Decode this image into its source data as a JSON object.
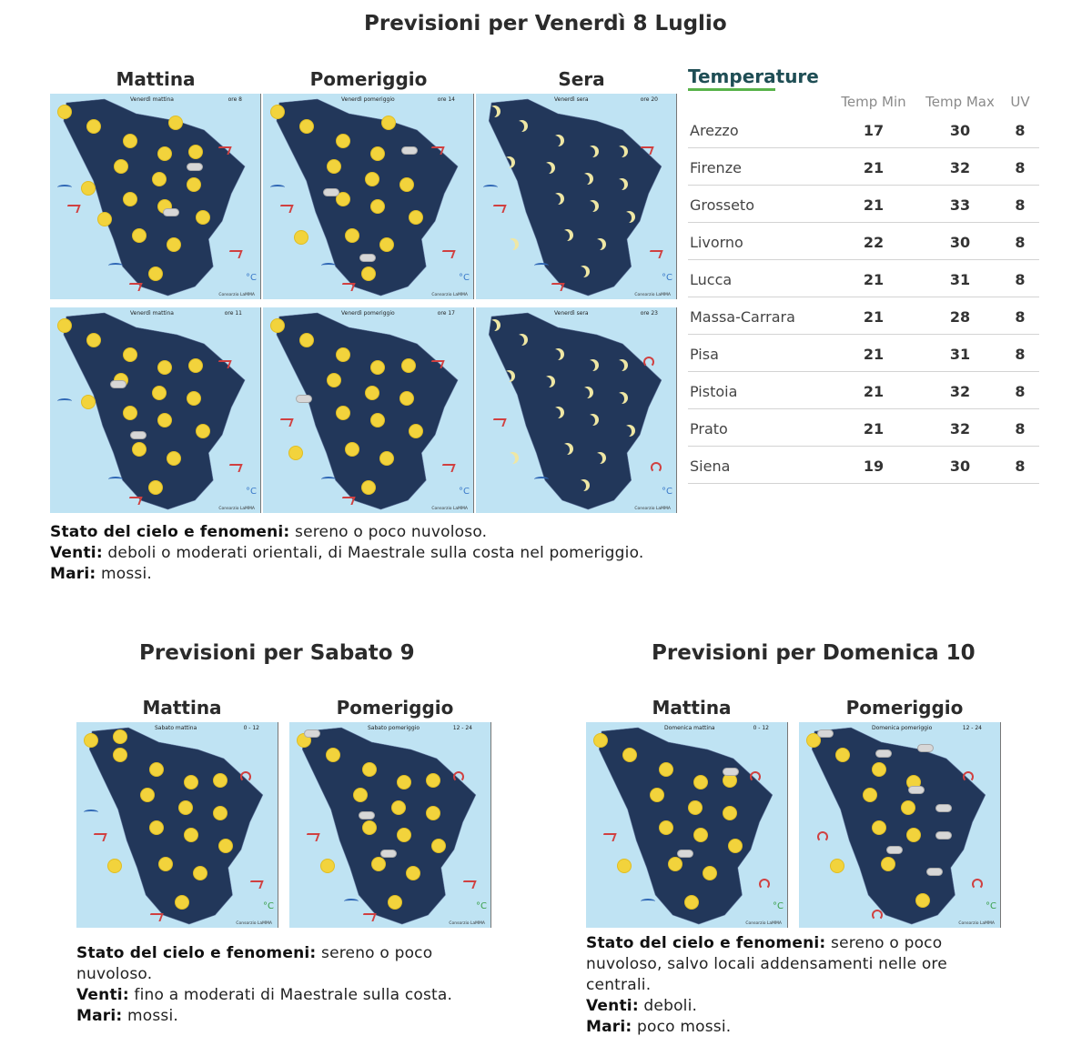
{
  "friday": {
    "title": "Previsioni per Venerdì 8 Luglio",
    "columns": [
      "Mattina",
      "Pomeriggio",
      "Sera"
    ],
    "maps": [
      {
        "caption": "Venerdì mattina",
        "time": "ore 8"
      },
      {
        "caption": "Venerdì pomeriggio",
        "time": "ore 14"
      },
      {
        "caption": "Venerdì sera",
        "time": "ore 20"
      },
      {
        "caption": "Venerdì mattina",
        "time": "ore 11"
      },
      {
        "caption": "Venerdì pomeriggio",
        "time": "ore 17"
      },
      {
        "caption": "Venerdì sera",
        "time": "ore 23"
      }
    ],
    "sky_label": "Stato del cielo e fenomeni:",
    "sky_text": "sereno o poco nuvoloso.",
    "wind_label": "Venti:",
    "wind_text": "deboli o moderati orientali, di Maestrale sulla costa nel pomeriggio.",
    "sea_label": "Mari:",
    "sea_text": "mossi."
  },
  "temperatures": {
    "title": "Temperature",
    "headers": [
      "Temp Min",
      "Temp Max",
      "UV"
    ],
    "rows": [
      {
        "city": "Arezzo",
        "min": "17",
        "max": "30",
        "uv": "8"
      },
      {
        "city": "Firenze",
        "min": "21",
        "max": "32",
        "uv": "8"
      },
      {
        "city": "Grosseto",
        "min": "21",
        "max": "33",
        "uv": "8"
      },
      {
        "city": "Livorno",
        "min": "22",
        "max": "30",
        "uv": "8"
      },
      {
        "city": "Lucca",
        "min": "21",
        "max": "31",
        "uv": "8"
      },
      {
        "city": "Massa-Carrara",
        "min": "21",
        "max": "28",
        "uv": "8"
      },
      {
        "city": "Pisa",
        "min": "21",
        "max": "31",
        "uv": "8"
      },
      {
        "city": "Pistoia",
        "min": "21",
        "max": "32",
        "uv": "8"
      },
      {
        "city": "Prato",
        "min": "21",
        "max": "32",
        "uv": "8"
      },
      {
        "city": "Siena",
        "min": "19",
        "max": "30",
        "uv": "8"
      }
    ]
  },
  "saturday": {
    "title": "Previsioni per Sabato 9",
    "columns": [
      "Mattina",
      "Pomeriggio"
    ],
    "maps": [
      {
        "caption": "Sabato mattina",
        "time": "0 - 12"
      },
      {
        "caption": "Sabato pomeriggio",
        "time": "12 - 24"
      }
    ],
    "sky_label": "Stato del cielo e fenomeni:",
    "sky_text_1": "sereno o poco",
    "sky_text_2": "nuvoloso.",
    "wind_label": "Venti:",
    "wind_text": "fino a moderati di Maestrale sulla costa.",
    "sea_label": "Mari:",
    "sea_text": "mossi."
  },
  "sunday": {
    "title": "Previsioni per Domenica 10",
    "columns": [
      "Mattina",
      "Pomeriggio"
    ],
    "maps": [
      {
        "caption": "Domenica mattina",
        "time": "0 - 12"
      },
      {
        "caption": "Domenica pomeriggio",
        "time": "12 - 24"
      }
    ],
    "sky_label": "Stato del cielo e fenomeni:",
    "sky_text_1": "sereno o poco",
    "sky_text_2": "nuvoloso, salvo locali addensamenti nelle ore",
    "sky_text_3": "centrali.",
    "wind_label": "Venti:",
    "wind_text": "deboli.",
    "sea_label": "Mari:",
    "sea_text": "poco mossi."
  },
  "map_common": {
    "credit": "Consorzio LaMMA",
    "temp_unit": "°C"
  },
  "colors": {
    "land": "#22375a",
    "sea": "#bfe3f3",
    "sun": "#f2d33c",
    "wind": "#d04040",
    "heading": "#2b2b2b",
    "accent_line": "#59b34a"
  }
}
